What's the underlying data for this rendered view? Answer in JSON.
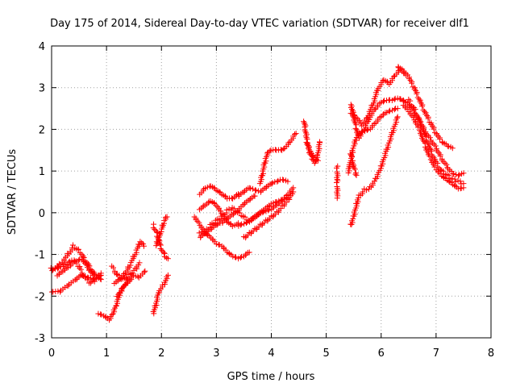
{
  "chart_data": {
    "type": "scatter",
    "title": "Day 175 of 2014, Sidereal Day-to-day VTEC variation (SDTVAR) for receiver dlf1",
    "xlabel": "GPS time / hours",
    "ylabel": "SDTVAR / TECUs",
    "xlim": [
      0,
      8
    ],
    "ylim": [
      -3,
      4
    ],
    "xticks": [
      "0",
      "1",
      "2",
      "3",
      "4",
      "5",
      "6",
      "7",
      "8"
    ],
    "yticks": [
      "-3",
      "-2",
      "-1",
      "0",
      "1",
      "2",
      "3",
      "4"
    ],
    "grid": true,
    "marker": "+",
    "color": "#ff0000",
    "tracks": [
      [
        [
          0.0,
          -1.35
        ],
        [
          0.15,
          -1.25
        ],
        [
          0.3,
          -1.0
        ],
        [
          0.4,
          -0.8
        ],
        [
          0.5,
          -0.9
        ],
        [
          0.6,
          -1.1
        ],
        [
          0.7,
          -1.3
        ],
        [
          0.8,
          -1.5
        ],
        [
          0.9,
          -1.6
        ]
      ],
      [
        [
          0.0,
          -1.4
        ],
        [
          0.1,
          -1.35
        ],
        [
          0.2,
          -1.3
        ],
        [
          0.3,
          -1.2
        ],
        [
          0.4,
          -1.15
        ],
        [
          0.5,
          -1.3
        ],
        [
          0.6,
          -1.55
        ],
        [
          0.7,
          -1.7
        ],
        [
          0.8,
          -1.6
        ],
        [
          0.9,
          -1.45
        ]
      ],
      [
        [
          0.0,
          -1.9
        ],
        [
          0.15,
          -1.9
        ],
        [
          0.3,
          -1.75
        ],
        [
          0.45,
          -1.6
        ],
        [
          0.55,
          -1.5
        ],
        [
          0.65,
          -1.55
        ],
        [
          0.75,
          -1.6
        ],
        [
          0.85,
          -1.55
        ],
        [
          0.9,
          -1.5
        ]
      ],
      [
        [
          0.1,
          -1.5
        ],
        [
          0.2,
          -1.4
        ],
        [
          0.3,
          -1.3
        ],
        [
          0.45,
          -1.15
        ],
        [
          0.55,
          -1.1
        ],
        [
          0.65,
          -1.3
        ],
        [
          0.75,
          -1.5
        ]
      ],
      [
        [
          0.85,
          -2.4
        ],
        [
          0.95,
          -2.45
        ],
        [
          1.05,
          -2.55
        ],
        [
          1.12,
          -2.4
        ],
        [
          1.18,
          -2.2
        ],
        [
          1.25,
          -1.9
        ],
        [
          1.35,
          -1.7
        ],
        [
          1.45,
          -1.6
        ]
      ],
      [
        [
          1.1,
          -1.3
        ],
        [
          1.2,
          -1.5
        ],
        [
          1.3,
          -1.6
        ],
        [
          1.4,
          -1.5
        ],
        [
          1.5,
          -1.4
        ],
        [
          1.6,
          -1.2
        ]
      ],
      [
        [
          1.15,
          -1.7
        ],
        [
          1.25,
          -1.6
        ],
        [
          1.35,
          -1.45
        ],
        [
          1.45,
          -1.2
        ],
        [
          1.55,
          -0.9
        ],
        [
          1.62,
          -0.7
        ],
        [
          1.68,
          -0.8
        ]
      ],
      [
        [
          1.2,
          -2.0
        ],
        [
          1.3,
          -1.8
        ],
        [
          1.4,
          -1.6
        ],
        [
          1.5,
          -1.5
        ],
        [
          1.6,
          -1.55
        ],
        [
          1.7,
          -1.4
        ]
      ],
      [
        [
          1.85,
          -2.4
        ],
        [
          1.9,
          -2.2
        ],
        [
          1.95,
          -1.9
        ],
        [
          2.05,
          -1.7
        ],
        [
          2.12,
          -1.5
        ]
      ],
      [
        [
          1.85,
          -0.3
        ],
        [
          1.92,
          -0.5
        ],
        [
          1.98,
          -0.8
        ],
        [
          2.05,
          -1.0
        ],
        [
          2.12,
          -1.1
        ]
      ],
      [
        [
          1.9,
          -0.8
        ],
        [
          1.95,
          -0.6
        ],
        [
          2.0,
          -0.4
        ],
        [
          2.05,
          -0.2
        ],
        [
          2.1,
          -0.1
        ]
      ],
      [
        [
          2.6,
          -0.1
        ],
        [
          2.7,
          -0.3
        ],
        [
          2.8,
          -0.5
        ],
        [
          2.9,
          -0.6
        ],
        [
          3.0,
          -0.75
        ],
        [
          3.1,
          -0.8
        ],
        [
          3.2,
          -0.95
        ],
        [
          3.3,
          -1.05
        ],
        [
          3.4,
          -1.1
        ],
        [
          3.5,
          -1.05
        ],
        [
          3.6,
          -0.95
        ]
      ],
      [
        [
          2.7,
          0.45
        ],
        [
          2.8,
          0.6
        ],
        [
          2.9,
          0.65
        ],
        [
          3.0,
          0.55
        ],
        [
          3.1,
          0.45
        ],
        [
          3.2,
          0.35
        ],
        [
          3.3,
          0.35
        ],
        [
          3.4,
          0.45
        ]
      ],
      [
        [
          2.7,
          0.1
        ],
        [
          2.8,
          0.2
        ],
        [
          2.9,
          0.3
        ],
        [
          3.0,
          0.2
        ],
        [
          3.1,
          0.0
        ],
        [
          3.2,
          -0.2
        ],
        [
          3.3,
          -0.3
        ],
        [
          3.4,
          -0.25
        ]
      ],
      [
        [
          2.7,
          -0.5
        ],
        [
          2.8,
          -0.45
        ],
        [
          2.9,
          -0.3
        ],
        [
          3.0,
          -0.2
        ],
        [
          3.1,
          -0.1
        ],
        [
          3.2,
          0.05
        ],
        [
          3.3,
          0.1
        ],
        [
          3.4,
          0.0
        ],
        [
          3.5,
          -0.1
        ],
        [
          3.6,
          -0.2
        ]
      ],
      [
        [
          2.7,
          -0.6
        ],
        [
          2.8,
          -0.5
        ],
        [
          2.9,
          -0.4
        ],
        [
          3.0,
          -0.3
        ],
        [
          3.1,
          -0.25
        ],
        [
          3.2,
          -0.15
        ],
        [
          3.3,
          -0.05
        ],
        [
          3.4,
          0.05
        ],
        [
          3.5,
          0.2
        ],
        [
          3.6,
          0.3
        ],
        [
          3.7,
          0.4
        ]
      ],
      [
        [
          3.4,
          0.4
        ],
        [
          3.5,
          0.5
        ],
        [
          3.6,
          0.6
        ],
        [
          3.7,
          0.55
        ],
        [
          3.8,
          0.5
        ],
        [
          3.9,
          0.6
        ],
        [
          4.0,
          0.7
        ],
        [
          4.1,
          0.75
        ],
        [
          4.2,
          0.8
        ],
        [
          4.3,
          0.75
        ]
      ],
      [
        [
          3.4,
          -0.3
        ],
        [
          3.5,
          -0.25
        ],
        [
          3.6,
          -0.2
        ],
        [
          3.7,
          -0.1
        ],
        [
          3.8,
          0.0
        ],
        [
          3.9,
          0.05
        ],
        [
          4.0,
          0.1
        ],
        [
          4.1,
          0.2
        ],
        [
          4.2,
          0.3
        ],
        [
          4.3,
          0.45
        ],
        [
          4.4,
          0.6
        ]
      ],
      [
        [
          3.5,
          -0.6
        ],
        [
          3.6,
          -0.5
        ],
        [
          3.7,
          -0.4
        ],
        [
          3.8,
          -0.3
        ],
        [
          3.9,
          -0.2
        ],
        [
          4.0,
          -0.1
        ],
        [
          4.1,
          0.0
        ],
        [
          4.2,
          0.15
        ],
        [
          4.3,
          0.3
        ],
        [
          4.4,
          0.5
        ]
      ],
      [
        [
          3.6,
          -0.2
        ],
        [
          3.7,
          -0.1
        ],
        [
          3.8,
          0.0
        ],
        [
          3.9,
          0.1
        ],
        [
          4.0,
          0.2
        ],
        [
          4.1,
          0.25
        ],
        [
          4.2,
          0.3
        ],
        [
          4.3,
          0.35
        ]
      ],
      [
        [
          3.8,
          0.7
        ],
        [
          3.85,
          1.0
        ],
        [
          3.9,
          1.3
        ],
        [
          3.95,
          1.45
        ],
        [
          4.0,
          1.5
        ],
        [
          4.1,
          1.5
        ],
        [
          4.2,
          1.5
        ],
        [
          4.25,
          1.55
        ],
        [
          4.35,
          1.7
        ],
        [
          4.45,
          1.9
        ]
      ],
      [
        [
          4.6,
          2.2
        ],
        [
          4.62,
          2.0
        ],
        [
          4.65,
          1.7
        ],
        [
          4.7,
          1.45
        ],
        [
          4.75,
          1.3
        ],
        [
          4.8,
          1.2
        ],
        [
          4.85,
          1.4
        ],
        [
          4.88,
          1.7
        ]
      ],
      [
        [
          4.65,
          1.7
        ],
        [
          4.7,
          1.5
        ],
        [
          4.75,
          1.4
        ],
        [
          4.8,
          1.3
        ],
        [
          4.85,
          1.25
        ]
      ],
      [
        [
          5.2,
          1.1
        ],
        [
          5.2,
          0.75
        ],
        [
          5.2,
          0.35
        ]
      ],
      [
        [
          5.4,
          0.95
        ],
        [
          5.45,
          1.3
        ],
        [
          5.5,
          1.6
        ],
        [
          5.55,
          1.8
        ],
        [
          5.6,
          1.9
        ],
        [
          5.7,
          1.95
        ],
        [
          5.8,
          2.0
        ],
        [
          5.9,
          2.15
        ],
        [
          6.0,
          2.3
        ],
        [
          6.1,
          2.4
        ],
        [
          6.2,
          2.45
        ],
        [
          6.3,
          2.5
        ]
      ],
      [
        [
          5.45,
          2.6
        ],
        [
          5.5,
          2.3
        ],
        [
          5.55,
          2.0
        ],
        [
          5.6,
          1.8
        ],
        [
          5.7,
          2.0
        ],
        [
          5.8,
          2.3
        ],
        [
          5.9,
          2.5
        ],
        [
          6.0,
          2.65
        ],
        [
          6.1,
          2.7
        ],
        [
          6.2,
          2.7
        ],
        [
          6.3,
          2.75
        ],
        [
          6.4,
          2.7
        ]
      ],
      [
        [
          5.45,
          2.4
        ],
        [
          5.55,
          2.3
        ],
        [
          5.65,
          2.1
        ],
        [
          5.75,
          2.3
        ],
        [
          5.85,
          2.6
        ],
        [
          5.95,
          3.0
        ],
        [
          6.05,
          3.2
        ],
        [
          6.15,
          3.1
        ],
        [
          6.25,
          3.3
        ],
        [
          6.35,
          3.45
        ],
        [
          6.45,
          3.3
        ]
      ],
      [
        [
          5.45,
          -0.3
        ],
        [
          5.5,
          -0.1
        ],
        [
          5.55,
          0.2
        ],
        [
          5.6,
          0.4
        ],
        [
          5.7,
          0.55
        ],
        [
          5.8,
          0.6
        ],
        [
          5.9,
          0.8
        ],
        [
          6.0,
          1.1
        ],
        [
          6.1,
          1.5
        ],
        [
          6.2,
          1.9
        ],
        [
          6.3,
          2.3
        ]
      ],
      [
        [
          5.45,
          1.4
        ],
        [
          5.5,
          1.1
        ],
        [
          5.55,
          0.9
        ]
      ],
      [
        [
          6.3,
          3.5
        ],
        [
          6.4,
          3.4
        ],
        [
          6.5,
          3.25
        ],
        [
          6.6,
          3.0
        ],
        [
          6.7,
          2.7
        ],
        [
          6.8,
          2.4
        ],
        [
          6.9,
          2.15
        ],
        [
          7.0,
          1.9
        ],
        [
          7.1,
          1.7
        ],
        [
          7.2,
          1.6
        ],
        [
          7.3,
          1.55
        ]
      ],
      [
        [
          6.4,
          2.7
        ],
        [
          6.5,
          2.6
        ],
        [
          6.6,
          2.4
        ],
        [
          6.7,
          2.2
        ],
        [
          6.8,
          1.95
        ],
        [
          6.9,
          1.75
        ],
        [
          7.0,
          1.55
        ],
        [
          7.1,
          1.3
        ],
        [
          7.2,
          1.1
        ],
        [
          7.3,
          0.95
        ],
        [
          7.4,
          0.9
        ],
        [
          7.5,
          0.95
        ]
      ],
      [
        [
          6.4,
          2.6
        ],
        [
          6.5,
          2.45
        ],
        [
          6.6,
          2.25
        ],
        [
          6.7,
          2.0
        ],
        [
          6.8,
          1.6
        ],
        [
          6.9,
          1.3
        ],
        [
          7.0,
          1.05
        ],
        [
          7.1,
          0.9
        ],
        [
          7.2,
          0.8
        ],
        [
          7.3,
          0.7
        ],
        [
          7.4,
          0.6
        ],
        [
          7.5,
          0.6
        ]
      ],
      [
        [
          6.5,
          2.7
        ],
        [
          6.6,
          2.5
        ],
        [
          6.7,
          2.2
        ],
        [
          6.8,
          1.85
        ],
        [
          6.9,
          1.5
        ],
        [
          7.0,
          1.2
        ],
        [
          7.1,
          1.0
        ],
        [
          7.2,
          0.9
        ],
        [
          7.3,
          0.8
        ],
        [
          7.4,
          0.75
        ],
        [
          7.5,
          0.7
        ]
      ]
    ]
  }
}
